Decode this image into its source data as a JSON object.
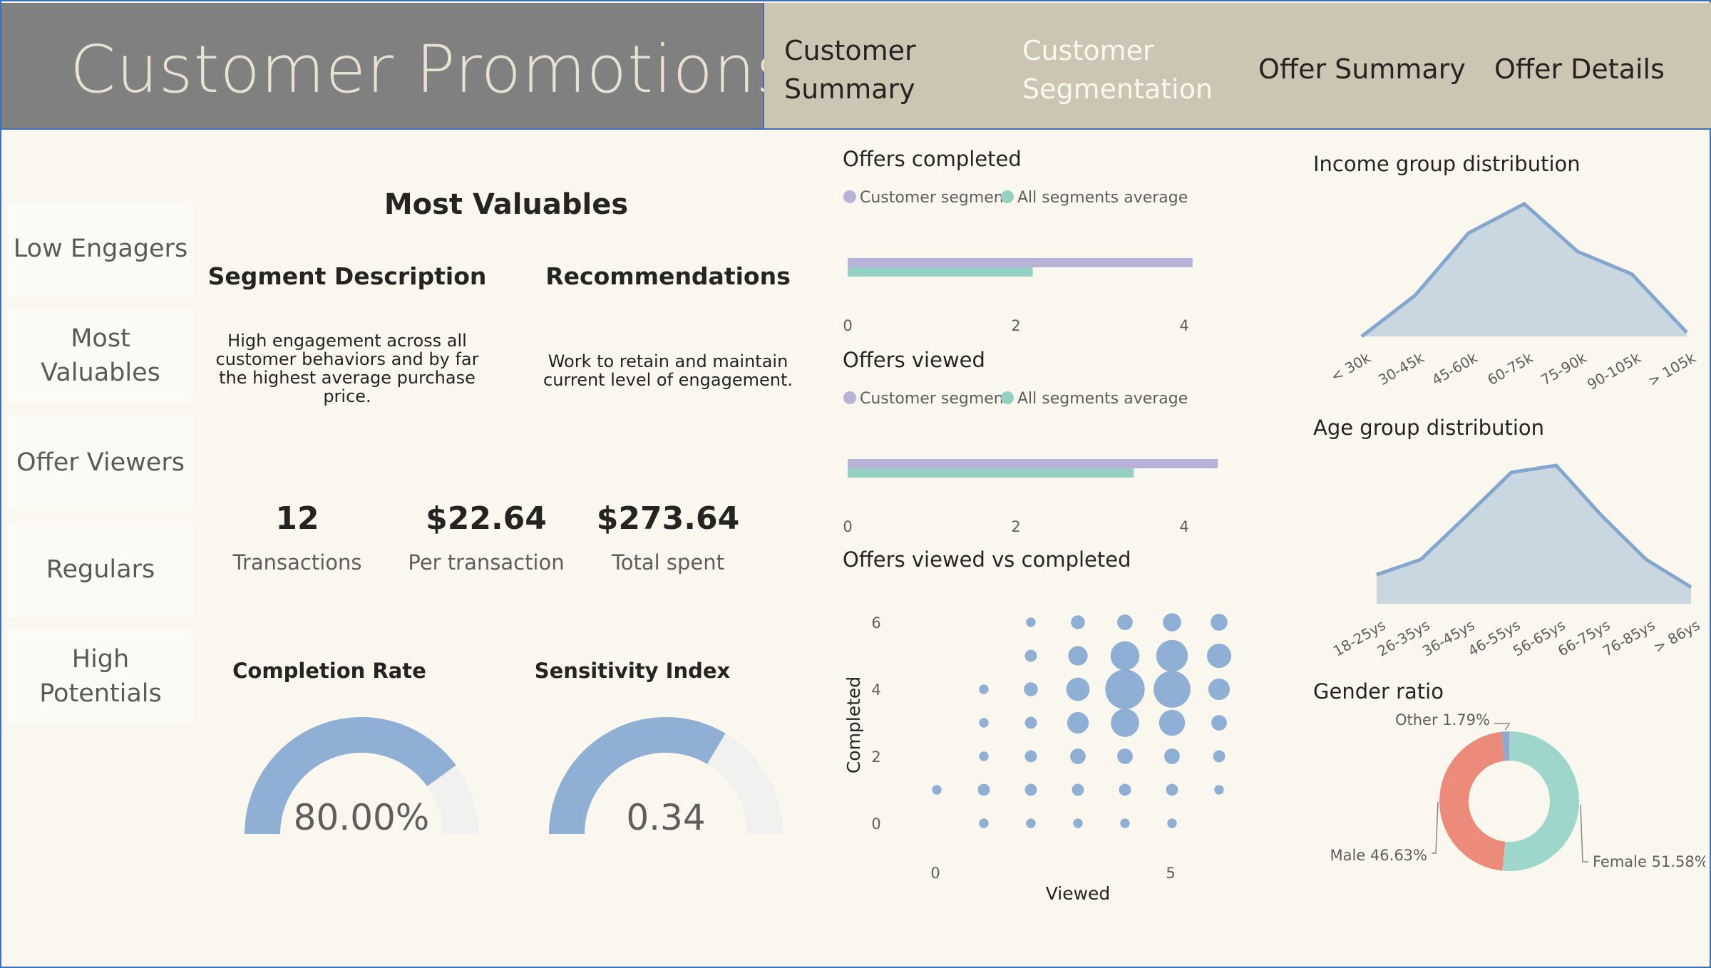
{
  "header": {
    "title": "Customer Promotions",
    "nav": [
      {
        "label_lines": [
          "Customer",
          "Summary"
        ],
        "active": false
      },
      {
        "label_lines": [
          "Customer",
          "Segmentation"
        ],
        "active": true
      },
      {
        "label_lines": [
          "Offer Summary"
        ],
        "active": false
      },
      {
        "label_lines": [
          "Offer Details"
        ],
        "active": false
      }
    ]
  },
  "segments": [
    {
      "label_lines": [
        "Low Engagers"
      ]
    },
    {
      "label_lines": [
        "Most",
        "Valuables"
      ]
    },
    {
      "label_lines": [
        "Offer Viewers"
      ]
    },
    {
      "label_lines": [
        "Regulars"
      ]
    },
    {
      "label_lines": [
        "High",
        "Potentials"
      ]
    }
  ],
  "segment_panel": {
    "title": "Most Valuables",
    "description_heading": "Segment Description",
    "description_lines": [
      "High engagement across all",
      "customer behaviors and by far",
      "the highest average purchase",
      "price."
    ],
    "recommendations_heading": "Recommendations",
    "recommendations_lines": [
      "Work to retain and maintain",
      "current level of engagement."
    ]
  },
  "kpis": [
    {
      "value": "12",
      "label": "Transactions"
    },
    {
      "value": "$22.64",
      "label": "Per transaction"
    },
    {
      "value": "$273.64",
      "label": "Total spent"
    }
  ],
  "gauges": [
    {
      "title": "Completion Rate",
      "display": "80.00%",
      "fraction": 0.8
    },
    {
      "title": "Sensitivity Index",
      "display": "0.34",
      "fraction": 0.67
    }
  ],
  "colors": {
    "segment": "#b8b2d8",
    "average": "#94d0c3",
    "bubble": "#8fb0d4",
    "area_fill": "#c9d8e0",
    "area_line": "#84a6cf",
    "gauge_fill": "#8fb0d4",
    "gauge_track": "#f1f1f0",
    "male": "#ec8b7a",
    "female": "#9fd6cb",
    "other": "#8fa9d2"
  },
  "chart_data": [
    {
      "id": "offers_completed",
      "type": "bar",
      "title": "Offers completed",
      "legend": [
        "Customer segment",
        "All segments average"
      ],
      "series": [
        {
          "name": "Customer segment",
          "values": [
            4.1
          ]
        },
        {
          "name": "All segments average",
          "values": [
            2.2
          ]
        }
      ],
      "xticks": [
        0,
        2,
        4
      ],
      "xlim": [
        0,
        4.5
      ]
    },
    {
      "id": "offers_viewed",
      "type": "bar",
      "title": "Offers viewed",
      "legend": [
        "Customer segment",
        "All segments average"
      ],
      "series": [
        {
          "name": "Customer segment",
          "values": [
            4.4
          ]
        },
        {
          "name": "All segments average",
          "values": [
            3.4
          ]
        }
      ],
      "xticks": [
        0,
        2,
        4
      ],
      "xlim": [
        0,
        4.5
      ]
    },
    {
      "id": "viewed_vs_completed",
      "type": "scatter",
      "title": "Offers viewed vs completed",
      "xlabel": "Viewed",
      "ylabel": "Completed",
      "xticks": [
        0,
        5
      ],
      "yticks": [
        0,
        2,
        4,
        6
      ],
      "points": [
        {
          "x": 0,
          "y": 1,
          "s": 1
        },
        {
          "x": 1,
          "y": 0,
          "s": 1
        },
        {
          "x": 1,
          "y": 1,
          "s": 2
        },
        {
          "x": 1,
          "y": 2,
          "s": 1
        },
        {
          "x": 1,
          "y": 3,
          "s": 1
        },
        {
          "x": 1,
          "y": 4,
          "s": 1
        },
        {
          "x": 2,
          "y": 0,
          "s": 1
        },
        {
          "x": 2,
          "y": 1,
          "s": 2
        },
        {
          "x": 2,
          "y": 2,
          "s": 2
        },
        {
          "x": 2,
          "y": 3,
          "s": 2
        },
        {
          "x": 2,
          "y": 4,
          "s": 3
        },
        {
          "x": 2,
          "y": 5,
          "s": 2
        },
        {
          "x": 2,
          "y": 6,
          "s": 1
        },
        {
          "x": 3,
          "y": 0,
          "s": 1
        },
        {
          "x": 3,
          "y": 1,
          "s": 2
        },
        {
          "x": 3,
          "y": 2,
          "s": 4
        },
        {
          "x": 3,
          "y": 3,
          "s": 9
        },
        {
          "x": 3,
          "y": 4,
          "s": 11
        },
        {
          "x": 3,
          "y": 5,
          "s": 7
        },
        {
          "x": 3,
          "y": 6,
          "s": 3
        },
        {
          "x": 4,
          "y": 0,
          "s": 1
        },
        {
          "x": 4,
          "y": 1,
          "s": 2
        },
        {
          "x": 4,
          "y": 2,
          "s": 4
        },
        {
          "x": 4,
          "y": 3,
          "s": 17
        },
        {
          "x": 4,
          "y": 4,
          "s": 36
        },
        {
          "x": 4,
          "y": 5,
          "s": 18
        },
        {
          "x": 4,
          "y": 6,
          "s": 4
        },
        {
          "x": 5,
          "y": 0,
          "s": 1
        },
        {
          "x": 5,
          "y": 1,
          "s": 2
        },
        {
          "x": 5,
          "y": 2,
          "s": 4
        },
        {
          "x": 5,
          "y": 3,
          "s": 14
        },
        {
          "x": 5,
          "y": 4,
          "s": 31
        },
        {
          "x": 5,
          "y": 5,
          "s": 22
        },
        {
          "x": 5,
          "y": 6,
          "s": 6
        },
        {
          "x": 6,
          "y": 1,
          "s": 1
        },
        {
          "x": 6,
          "y": 2,
          "s": 2
        },
        {
          "x": 6,
          "y": 3,
          "s": 4
        },
        {
          "x": 6,
          "y": 4,
          "s": 9
        },
        {
          "x": 6,
          "y": 5,
          "s": 12
        },
        {
          "x": 6,
          "y": 6,
          "s": 5
        }
      ]
    },
    {
      "id": "income_distribution",
      "type": "area",
      "title": "Income group distribution",
      "categories": [
        "< 30k",
        "30-45k",
        "45-60k",
        "60-75k",
        "75-90k",
        "90-105k",
        "> 105k"
      ],
      "values": [
        0,
        0.31,
        0.78,
        1.0,
        0.64,
        0.47,
        0.03
      ]
    },
    {
      "id": "age_distribution",
      "type": "area",
      "title": "Age group distribution",
      "categories": [
        "18-25ys",
        "26-35ys",
        "36-45ys",
        "46-55ys",
        "56-65ys",
        "66-75ys",
        "76-85ys",
        "> 86ys"
      ],
      "values": [
        0.21,
        0.32,
        0.63,
        0.95,
        1.0,
        0.64,
        0.32,
        0.12
      ]
    },
    {
      "id": "gender_ratio",
      "type": "pie",
      "title": "Gender ratio",
      "slices": [
        {
          "label": "Female",
          "value": 51.58,
          "display": "Female 51.58%"
        },
        {
          "label": "Male",
          "value": 46.63,
          "display": "Male 46.63%"
        },
        {
          "label": "Other",
          "value": 1.79,
          "display": "Other 1.79%"
        }
      ]
    }
  ]
}
